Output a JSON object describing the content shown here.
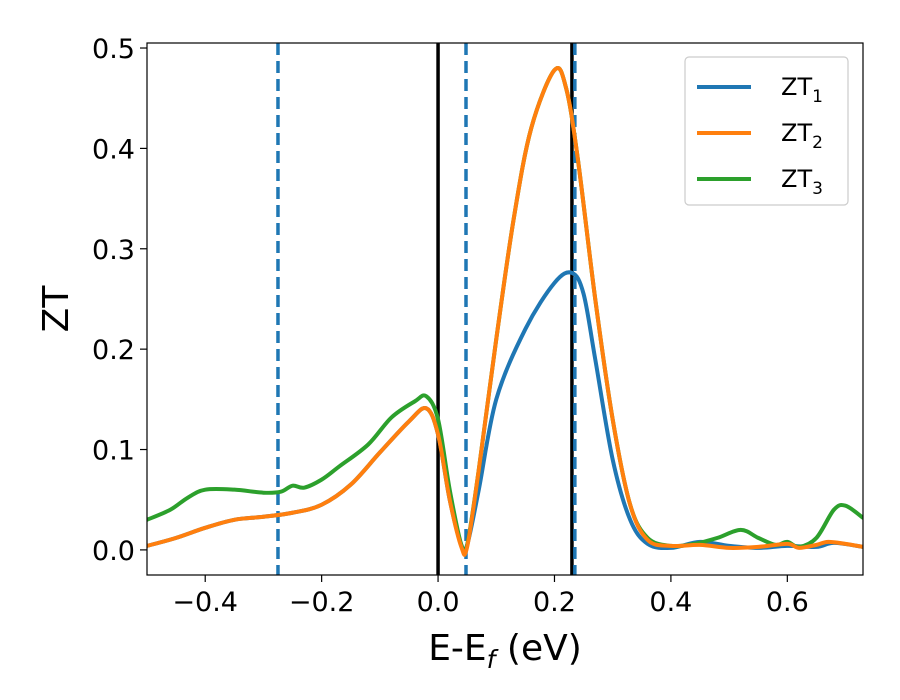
{
  "chart_data": {
    "type": "line",
    "xlabel": "E-E",
    "xlabel_sub": "f",
    "xlabel_unit": " (eV)",
    "ylabel": "ZT",
    "xlim": [
      -0.5,
      0.73
    ],
    "ylim": [
      -0.025,
      0.505
    ],
    "xticks": [
      -0.4,
      -0.2,
      0.0,
      0.2,
      0.4,
      0.6
    ],
    "xtick_labels": [
      "−0.4",
      "−0.2",
      "0.0",
      "0.2",
      "0.4",
      "0.6"
    ],
    "yticks": [
      0.0,
      0.1,
      0.2,
      0.3,
      0.4,
      0.5
    ],
    "ytick_labels": [
      "0.0",
      "0.1",
      "0.2",
      "0.3",
      "0.4",
      "0.5"
    ],
    "legend_position": "top-right",
    "vlines": [
      {
        "x": -0.275,
        "style": "dashed",
        "color": "#1f77b4"
      },
      {
        "x": 0.0,
        "style": "solid",
        "color": "#000000"
      },
      {
        "x": 0.048,
        "style": "dashed",
        "color": "#1f77b4"
      },
      {
        "x": 0.23,
        "style": "solid",
        "color": "#000000"
      },
      {
        "x": 0.235,
        "style": "dashed",
        "color": "#1f77b4"
      }
    ],
    "series": [
      {
        "name": "ZT",
        "name_sub": "1",
        "color": "#1f77b4",
        "points": [
          [
            -0.5,
            0.004
          ],
          [
            -0.45,
            0.012
          ],
          [
            -0.4,
            0.022
          ],
          [
            -0.35,
            0.03
          ],
          [
            -0.3,
            0.033
          ],
          [
            -0.25,
            0.037
          ],
          [
            -0.2,
            0.045
          ],
          [
            -0.15,
            0.065
          ],
          [
            -0.1,
            0.097
          ],
          [
            -0.05,
            0.128
          ],
          [
            -0.02,
            0.141
          ],
          [
            0.0,
            0.115
          ],
          [
            0.02,
            0.05
          ],
          [
            0.04,
            0.005
          ],
          [
            0.05,
            0.005
          ],
          [
            0.07,
            0.06
          ],
          [
            0.1,
            0.15
          ],
          [
            0.15,
            0.22
          ],
          [
            0.2,
            0.266
          ],
          [
            0.23,
            0.276
          ],
          [
            0.25,
            0.255
          ],
          [
            0.27,
            0.19
          ],
          [
            0.3,
            0.09
          ],
          [
            0.33,
            0.03
          ],
          [
            0.36,
            0.006
          ],
          [
            0.4,
            0.002
          ],
          [
            0.45,
            0.008
          ],
          [
            0.5,
            0.004
          ],
          [
            0.55,
            0.002
          ],
          [
            0.6,
            0.004
          ],
          [
            0.65,
            0.003
          ],
          [
            0.68,
            0.007
          ],
          [
            0.73,
            0.003
          ]
        ]
      },
      {
        "name": "ZT",
        "name_sub": "2",
        "color": "#ff7f0e",
        "points": [
          [
            -0.5,
            0.004
          ],
          [
            -0.45,
            0.012
          ],
          [
            -0.4,
            0.022
          ],
          [
            -0.35,
            0.03
          ],
          [
            -0.3,
            0.033
          ],
          [
            -0.25,
            0.037
          ],
          [
            -0.2,
            0.045
          ],
          [
            -0.15,
            0.065
          ],
          [
            -0.1,
            0.097
          ],
          [
            -0.05,
            0.128
          ],
          [
            -0.02,
            0.141
          ],
          [
            0.0,
            0.115
          ],
          [
            0.02,
            0.05
          ],
          [
            0.04,
            0.003
          ],
          [
            0.05,
            0.003
          ],
          [
            0.07,
            0.08
          ],
          [
            0.1,
            0.21
          ],
          [
            0.13,
            0.33
          ],
          [
            0.16,
            0.42
          ],
          [
            0.2,
            0.478
          ],
          [
            0.22,
            0.46
          ],
          [
            0.24,
            0.39
          ],
          [
            0.27,
            0.25
          ],
          [
            0.3,
            0.13
          ],
          [
            0.33,
            0.045
          ],
          [
            0.36,
            0.01
          ],
          [
            0.4,
            0.004
          ],
          [
            0.45,
            0.005
          ],
          [
            0.5,
            0.002
          ],
          [
            0.55,
            0.003
          ],
          [
            0.6,
            0.006
          ],
          [
            0.62,
            0.002
          ],
          [
            0.65,
            0.005
          ],
          [
            0.67,
            0.008
          ],
          [
            0.7,
            0.006
          ],
          [
            0.73,
            0.003
          ]
        ]
      },
      {
        "name": "ZT",
        "name_sub": "3",
        "color": "#2ca02c",
        "points": [
          [
            -0.5,
            0.03
          ],
          [
            -0.46,
            0.04
          ],
          [
            -0.43,
            0.052
          ],
          [
            -0.4,
            0.06
          ],
          [
            -0.35,
            0.06
          ],
          [
            -0.3,
            0.057
          ],
          [
            -0.27,
            0.058
          ],
          [
            -0.25,
            0.064
          ],
          [
            -0.23,
            0.062
          ],
          [
            -0.2,
            0.07
          ],
          [
            -0.17,
            0.083
          ],
          [
            -0.12,
            0.105
          ],
          [
            -0.08,
            0.132
          ],
          [
            -0.04,
            0.148
          ],
          [
            -0.02,
            0.153
          ],
          [
            0.0,
            0.13
          ],
          [
            0.02,
            0.06
          ],
          [
            0.04,
            0.005
          ],
          [
            0.05,
            0.005
          ],
          [
            0.07,
            0.08
          ],
          [
            0.1,
            0.21
          ],
          [
            0.13,
            0.33
          ],
          [
            0.16,
            0.42
          ],
          [
            0.2,
            0.478
          ],
          [
            0.22,
            0.46
          ],
          [
            0.24,
            0.39
          ],
          [
            0.27,
            0.25
          ],
          [
            0.3,
            0.13
          ],
          [
            0.33,
            0.045
          ],
          [
            0.36,
            0.012
          ],
          [
            0.4,
            0.004
          ],
          [
            0.44,
            0.006
          ],
          [
            0.48,
            0.012
          ],
          [
            0.52,
            0.02
          ],
          [
            0.55,
            0.012
          ],
          [
            0.58,
            0.005
          ],
          [
            0.6,
            0.008
          ],
          [
            0.62,
            0.003
          ],
          [
            0.65,
            0.012
          ],
          [
            0.68,
            0.04
          ],
          [
            0.7,
            0.044
          ],
          [
            0.73,
            0.032
          ]
        ]
      }
    ]
  }
}
